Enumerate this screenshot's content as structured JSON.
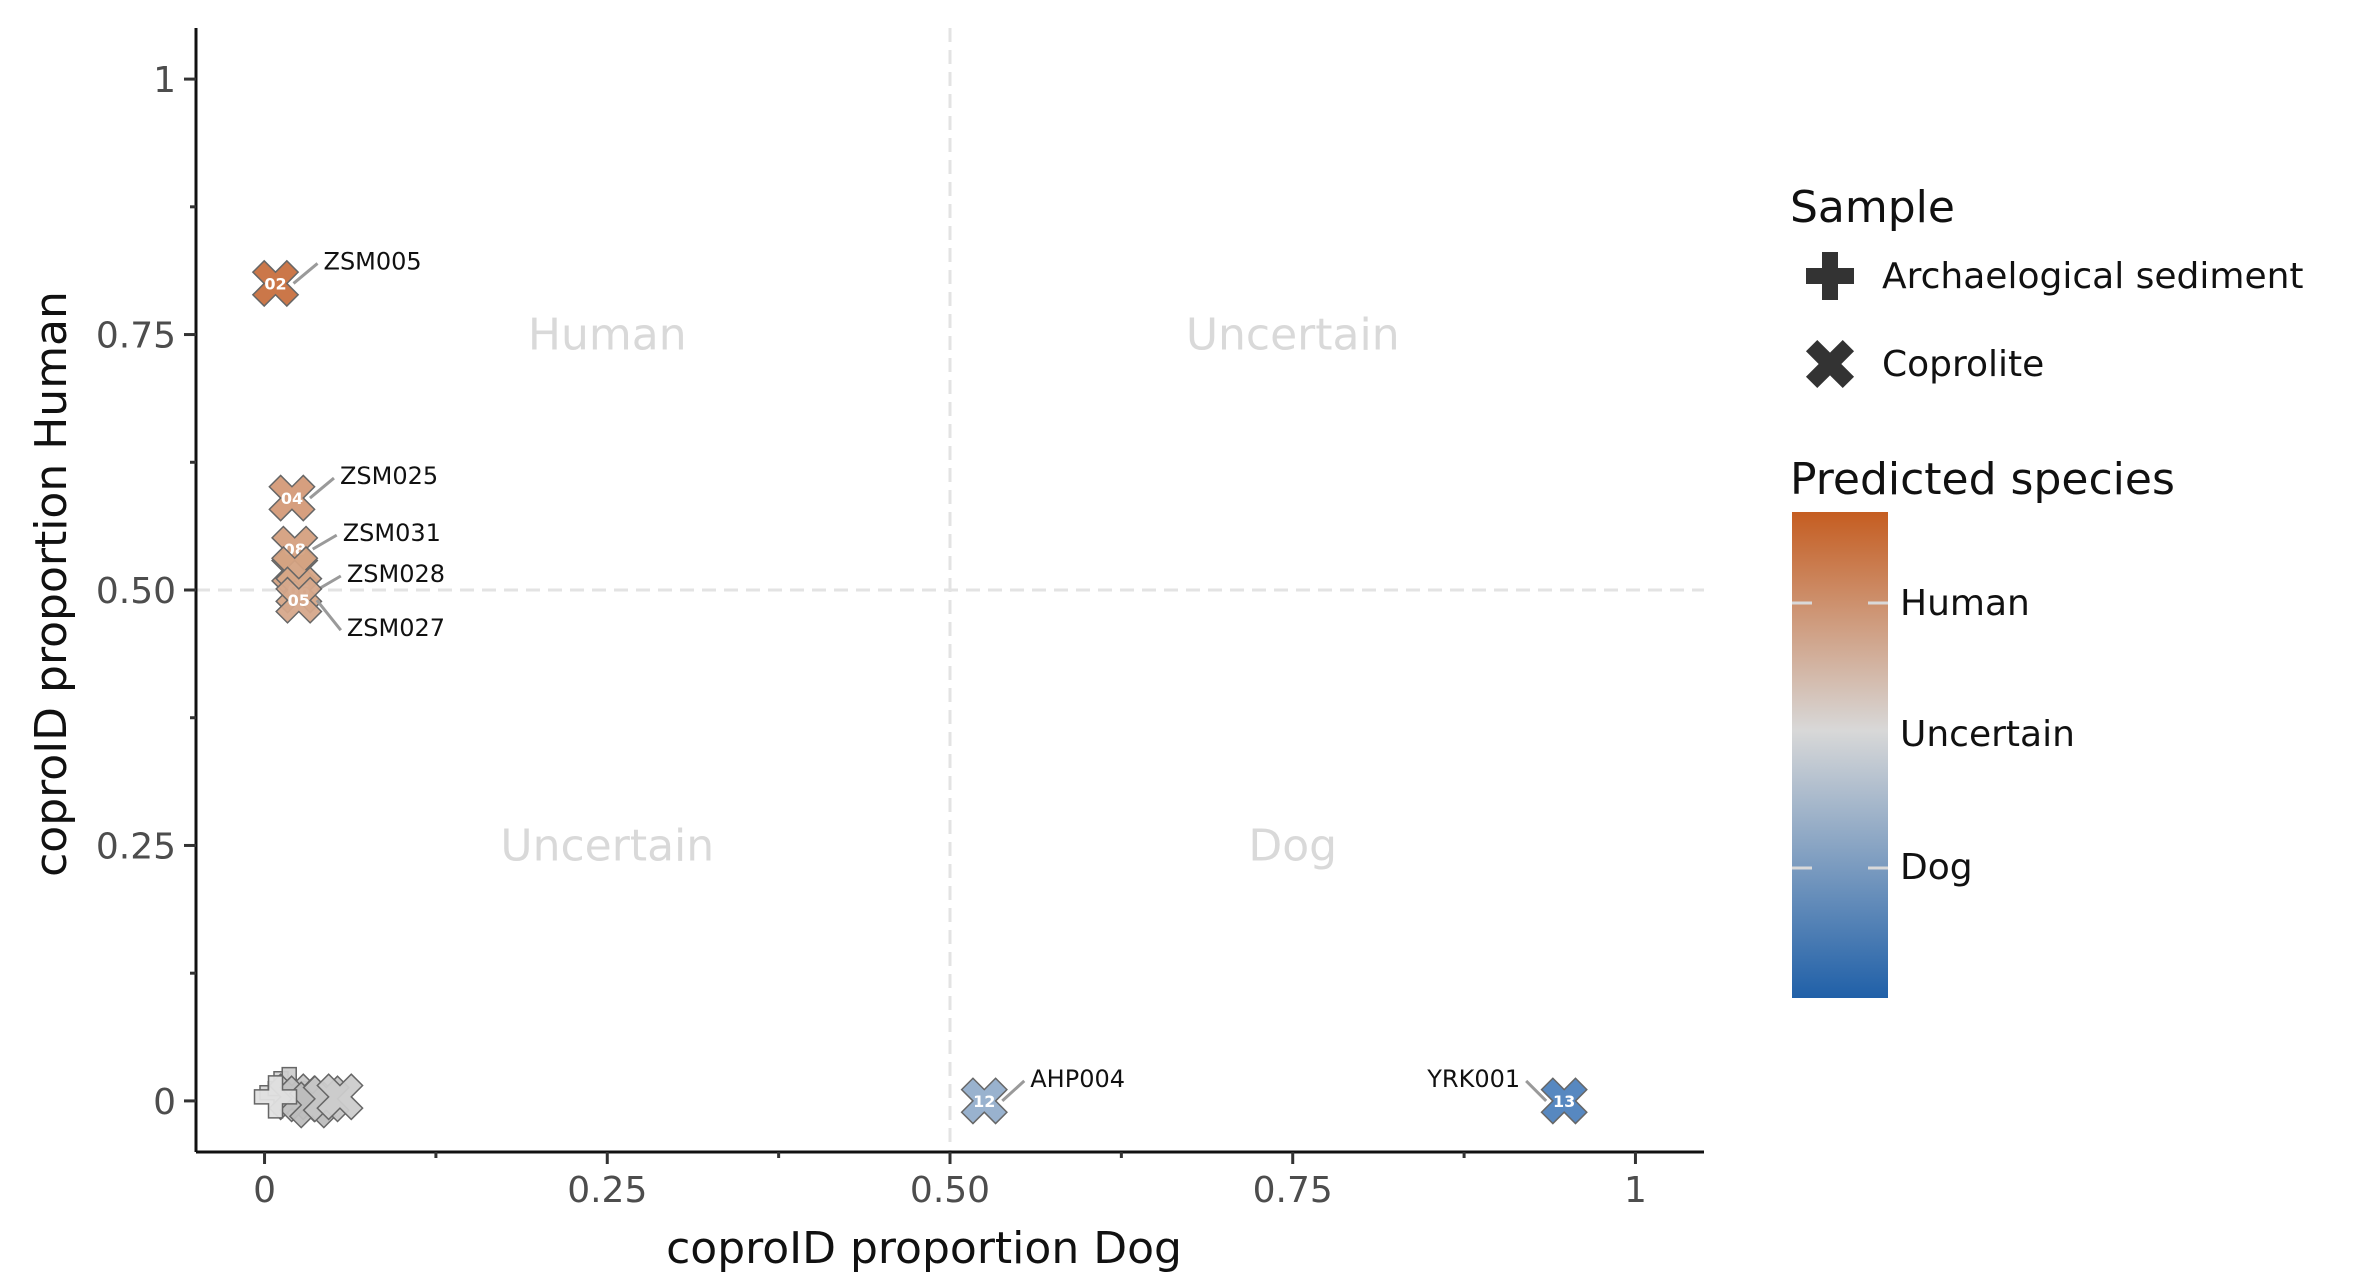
{
  "chart_data": {
    "type": "scatter",
    "xlabel": "coproID proportion Dog",
    "ylabel": "coproID proportion Human",
    "xlim": [
      -0.05,
      1.05
    ],
    "ylim": [
      -0.05,
      1.05
    ],
    "x_ticks": [
      {
        "value": 0,
        "label": "0"
      },
      {
        "value": 0.25,
        "label": "0.25"
      },
      {
        "value": 0.5,
        "label": "0.50"
      },
      {
        "value": 0.75,
        "label": "0.75"
      },
      {
        "value": 1,
        "label": "1"
      }
    ],
    "y_ticks": [
      {
        "value": 0,
        "label": "0"
      },
      {
        "value": 0.25,
        "label": "0.25"
      },
      {
        "value": 0.5,
        "label": "0.50"
      },
      {
        "value": 0.75,
        "label": "0.75"
      },
      {
        "value": 1,
        "label": "1"
      }
    ],
    "minor_ticks": [
      0.125,
      0.375,
      0.625,
      0.875
    ],
    "reference_lines": {
      "x": 0.5,
      "y": 0.5
    },
    "grid": false,
    "quadrant_labels": [
      {
        "text": "Human",
        "x": 0.25,
        "y": 0.75
      },
      {
        "text": "Uncertain",
        "x": 0.75,
        "y": 0.75
      },
      {
        "text": "Uncertain",
        "x": 0.25,
        "y": 0.25
      },
      {
        "text": "Dog",
        "x": 0.75,
        "y": 0.25
      }
    ],
    "points": [
      {
        "id": "02",
        "label": "ZSM005",
        "x": 0.008,
        "y": 0.8,
        "shape": "coprolite",
        "color": "#c8703f"
      },
      {
        "id": "04",
        "label": "ZSM025",
        "x": 0.02,
        "y": 0.59,
        "shape": "coprolite",
        "color": "#d49a78"
      },
      {
        "id": "08",
        "label": "ZSM031",
        "x": 0.022,
        "y": 0.54,
        "shape": "coprolite",
        "color": "#d5a07f"
      },
      {
        "id": "",
        "label": "",
        "x": 0.022,
        "y": 0.52,
        "shape": "coprolite",
        "color": "#d4a282"
      },
      {
        "id": "06",
        "label": "ZSM028",
        "x": 0.025,
        "y": 0.5,
        "shape": "coprolite",
        "color": "#d6a586"
      },
      {
        "id": "05",
        "label": "ZSM027",
        "x": 0.025,
        "y": 0.49,
        "shape": "coprolite",
        "color": "#d6a88b"
      },
      {
        "id": "",
        "label": "",
        "x": 0.012,
        "y": 0.008,
        "shape": "sediment",
        "color": "#d7d7d7"
      },
      {
        "id": "",
        "label": "",
        "x": 0.018,
        "y": 0.012,
        "shape": "sediment",
        "color": "#cfcfcf"
      },
      {
        "id": "",
        "label": "",
        "x": 0.02,
        "y": 0.004,
        "shape": "coprolite",
        "color": "#c8c8c8"
      },
      {
        "id": "",
        "label": "",
        "x": 0.028,
        "y": 0.002,
        "shape": "coprolite",
        "color": "#c2c2c2"
      },
      {
        "id": "",
        "label": "",
        "x": 0.035,
        "y": -0.004,
        "shape": "coprolite",
        "color": "#bdbdbd"
      },
      {
        "id": "",
        "label": "",
        "x": 0.045,
        "y": 0.002,
        "shape": "coprolite",
        "color": "#c5c5c5"
      },
      {
        "id": "",
        "label": "",
        "x": 0.055,
        "y": 0.004,
        "shape": "coprolite",
        "color": "#cccccc"
      },
      {
        "id": "",
        "label": "",
        "x": 0.008,
        "y": 0.004,
        "shape": "sediment",
        "color": "#e0e0e0"
      },
      {
        "id": "12",
        "label": "AHP004",
        "x": 0.525,
        "y": 0.0,
        "shape": "coprolite",
        "color": "#93aecb"
      },
      {
        "id": "13",
        "label": "YRK001",
        "x": 0.948,
        "y": 0.0,
        "shape": "coprolite",
        "color": "#4e82bd"
      }
    ],
    "legend": {
      "shape_title": "Sample",
      "shape_items": [
        {
          "label": "Archaelogical sediment",
          "shape": "sediment"
        },
        {
          "label": "Coprolite",
          "shape": "coprolite"
        }
      ],
      "color_title": "Predicted species",
      "color_labels": [
        "Human",
        "Uncertain",
        "Dog"
      ],
      "color_gradient": [
        "#c55d21",
        "#d8d8d8",
        "#2060a8"
      ],
      "placement": "right"
    }
  }
}
